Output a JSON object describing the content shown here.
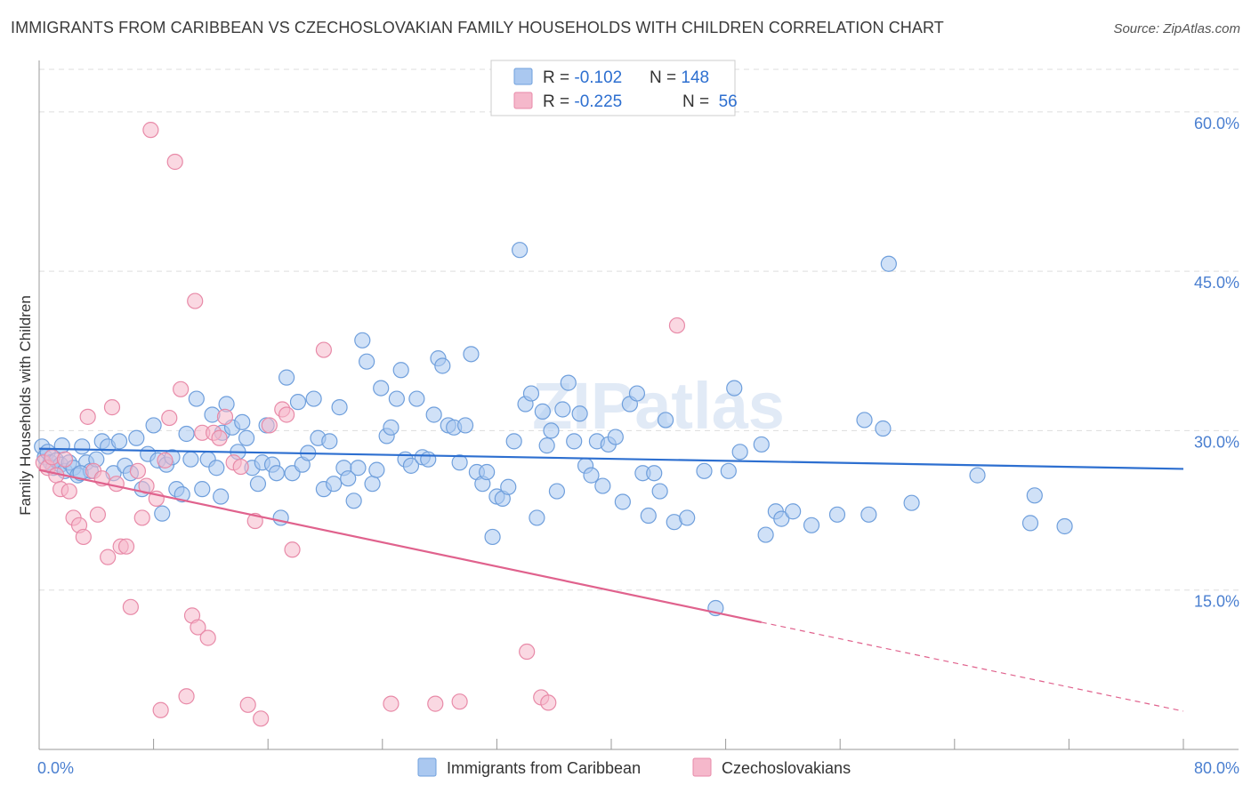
{
  "title": "IMMIGRANTS FROM CARIBBEAN VS CZECHOSLOVAKIAN FAMILY HOUSEHOLDS WITH CHILDREN CORRELATION CHART",
  "source": "Source: ZipAtlas.com",
  "watermark": "ZIPatlas",
  "colors": {
    "blue_fill": "#aac8f0",
    "blue_stroke": "#6f9fdc",
    "blue_line": "#2d6fd0",
    "pink_fill": "#f5b8cb",
    "pink_stroke": "#e88aa8",
    "pink_line": "#e0628d",
    "tick_text": "#4a7fd0",
    "grid": "#dddddd"
  },
  "legend": {
    "rows": [
      {
        "r_label": "R = ",
        "r_value": "-0.102",
        "n_label": "N = ",
        "n_value": "148"
      },
      {
        "r_label": "R = ",
        "r_value": "-0.225",
        "n_label": "N = ",
        "n_value": " 56"
      }
    ]
  },
  "bottom_legend": [
    "Immigrants from Caribbean",
    "Czechoslovakians"
  ],
  "chart_data": {
    "type": "scatter",
    "xlabel": "",
    "ylabel": "Family Households with Children",
    "xlim": [
      0,
      80
    ],
    "ylim": [
      0,
      64
    ],
    "x_tick_labels": [
      {
        "value": 0,
        "label": "0.0%"
      },
      {
        "value": 80,
        "label": "80.0%"
      }
    ],
    "y_tick_labels": [
      {
        "value": 15,
        "label": "15.0%"
      },
      {
        "value": 30,
        "label": "30.0%"
      },
      {
        "value": 45,
        "label": "45.0%"
      },
      {
        "value": 60,
        "label": "60.0%"
      }
    ],
    "x_minor_ticks": [
      0,
      8,
      16,
      24,
      32,
      40,
      48,
      56,
      64,
      72,
      80
    ],
    "grid": true,
    "series": [
      {
        "name": "Immigrants from Caribbean",
        "color": "#aac8f0",
        "trend": {
          "x": [
            0,
            80
          ],
          "y": [
            28.3,
            26.4
          ],
          "dashed_from": null
        },
        "points": [
          [
            0.2,
            28.5
          ],
          [
            0.4,
            27.5
          ],
          [
            0.6,
            28
          ],
          [
            0.8,
            27
          ],
          [
            1,
            26.5
          ],
          [
            1.2,
            27.2
          ],
          [
            1.5,
            26.8
          ],
          [
            1.8,
            26.2
          ],
          [
            2.1,
            27
          ],
          [
            2.4,
            26.5
          ],
          [
            2.7,
            25.8
          ],
          [
            3,
            28.5
          ],
          [
            3.3,
            27
          ],
          [
            3.6,
            26.2
          ],
          [
            4,
            27.3
          ],
          [
            4.4,
            29
          ],
          [
            4.8,
            28.5
          ],
          [
            5.2,
            26
          ],
          [
            5.6,
            29
          ],
          [
            6,
            26.7
          ],
          [
            6.4,
            26
          ],
          [
            6.8,
            29.3
          ],
          [
            7.2,
            24.5
          ],
          [
            7.6,
            27.8
          ],
          [
            8,
            30.5
          ],
          [
            8.3,
            27.2
          ],
          [
            8.6,
            22.2
          ],
          [
            8.9,
            26.8
          ],
          [
            9.3,
            27.5
          ],
          [
            9.6,
            24.5
          ],
          [
            10,
            24
          ],
          [
            10.3,
            29.7
          ],
          [
            10.6,
            27.3
          ],
          [
            11,
            33
          ],
          [
            11.4,
            24.5
          ],
          [
            11.8,
            27.3
          ],
          [
            12.1,
            31.5
          ],
          [
            12.4,
            26.5
          ],
          [
            12.8,
            29.8
          ],
          [
            13.1,
            32.5
          ],
          [
            13.5,
            30.3
          ],
          [
            13.9,
            28
          ],
          [
            14.2,
            30.8
          ],
          [
            14.5,
            29.3
          ],
          [
            14.9,
            26.5
          ],
          [
            15.3,
            25
          ],
          [
            15.6,
            27
          ],
          [
            15.9,
            30.5
          ],
          [
            16.3,
            26.8
          ],
          [
            16.6,
            26
          ],
          [
            16.9,
            21.8
          ],
          [
            17.3,
            35
          ],
          [
            17.7,
            26
          ],
          [
            18.1,
            32.7
          ],
          [
            18.4,
            26.8
          ],
          [
            18.8,
            27.9
          ],
          [
            19.2,
            33
          ],
          [
            19.5,
            29.3
          ],
          [
            19.9,
            24.5
          ],
          [
            20.3,
            29
          ],
          [
            20.6,
            25
          ],
          [
            21,
            32.2
          ],
          [
            21.3,
            26.5
          ],
          [
            21.6,
            25.5
          ],
          [
            22,
            23.4
          ],
          [
            22.3,
            26.5
          ],
          [
            22.6,
            38.5
          ],
          [
            22.9,
            36.5
          ],
          [
            23.3,
            25
          ],
          [
            23.6,
            26.3
          ],
          [
            23.9,
            34
          ],
          [
            24.3,
            29.5
          ],
          [
            24.6,
            30.3
          ],
          [
            25,
            33
          ],
          [
            25.3,
            35.7
          ],
          [
            25.6,
            27.3
          ],
          [
            26,
            26.7
          ],
          [
            26.4,
            33
          ],
          [
            26.8,
            27.5
          ],
          [
            27.2,
            27.3
          ],
          [
            27.6,
            31.5
          ],
          [
            27.9,
            36.8
          ],
          [
            28.2,
            36.1
          ],
          [
            28.6,
            30.5
          ],
          [
            29,
            30.3
          ],
          [
            29.4,
            27
          ],
          [
            29.8,
            30.5
          ],
          [
            30.2,
            37.2
          ],
          [
            30.6,
            26.1
          ],
          [
            31,
            25
          ],
          [
            31.3,
            26.1
          ],
          [
            31.7,
            20
          ],
          [
            32,
            23.8
          ],
          [
            32.4,
            23.6
          ],
          [
            32.8,
            24.7
          ],
          [
            33.2,
            29
          ],
          [
            33.6,
            47
          ],
          [
            34,
            32.5
          ],
          [
            34.4,
            33.5
          ],
          [
            34.8,
            21.8
          ],
          [
            35.2,
            31.8
          ],
          [
            35.5,
            28.6
          ],
          [
            35.8,
            30
          ],
          [
            36.2,
            24.3
          ],
          [
            36.6,
            32
          ],
          [
            37,
            34.5
          ],
          [
            37.4,
            29
          ],
          [
            37.8,
            31.6
          ],
          [
            38.2,
            26.7
          ],
          [
            38.6,
            25.8
          ],
          [
            39,
            29
          ],
          [
            39.4,
            24.8
          ],
          [
            39.8,
            28.7
          ],
          [
            40.3,
            29.4
          ],
          [
            40.8,
            23.3
          ],
          [
            41.3,
            32.5
          ],
          [
            41.8,
            33.5
          ],
          [
            42.2,
            26
          ],
          [
            42.6,
            22
          ],
          [
            43,
            26
          ],
          [
            43.4,
            24.3
          ],
          [
            43.8,
            31
          ],
          [
            44.4,
            21.4
          ],
          [
            45.3,
            21.8
          ],
          [
            46.5,
            26.2
          ],
          [
            47.3,
            13.3
          ],
          [
            48.2,
            26.2
          ],
          [
            48.6,
            34
          ],
          [
            49,
            28
          ],
          [
            50.5,
            28.7
          ],
          [
            50.8,
            20.2
          ],
          [
            51.5,
            22.4
          ],
          [
            51.9,
            21.7
          ],
          [
            52.7,
            22.4
          ],
          [
            54,
            21.1
          ],
          [
            55.8,
            22.1
          ],
          [
            57.7,
            31
          ],
          [
            58,
            22.1
          ],
          [
            59,
            30.2
          ],
          [
            59.4,
            45.7
          ],
          [
            61,
            23.2
          ],
          [
            65.6,
            25.8
          ],
          [
            69.3,
            21.3
          ],
          [
            69.6,
            23.9
          ],
          [
            71.7,
            21
          ],
          [
            1.6,
            28.6
          ],
          [
            2.9,
            26
          ],
          [
            12.7,
            23.8
          ]
        ]
      },
      {
        "name": "Czechoslovakians",
        "color": "#f5b8cb",
        "trend": {
          "x": [
            0,
            80
          ],
          "y": [
            26.3,
            3.6
          ],
          "dashed_from": 50.5
        },
        "points": [
          [
            0.3,
            27
          ],
          [
            0.6,
            26.5
          ],
          [
            0.9,
            27.5
          ],
          [
            1.2,
            25.8
          ],
          [
            1.5,
            24.5
          ],
          [
            1.8,
            27.3
          ],
          [
            2.1,
            24.3
          ],
          [
            2.4,
            21.8
          ],
          [
            2.8,
            21.1
          ],
          [
            3.1,
            20
          ],
          [
            3.4,
            31.3
          ],
          [
            3.8,
            26.2
          ],
          [
            4.1,
            22.1
          ],
          [
            4.4,
            25.5
          ],
          [
            4.8,
            18.1
          ],
          [
            5.1,
            32.2
          ],
          [
            5.4,
            25
          ],
          [
            5.7,
            19.1
          ],
          [
            6.1,
            19.1
          ],
          [
            6.4,
            13.4
          ],
          [
            6.9,
            26.2
          ],
          [
            7.2,
            21.8
          ],
          [
            7.5,
            24.8
          ],
          [
            7.8,
            58.3
          ],
          [
            8.2,
            23.6
          ],
          [
            8.5,
            3.7
          ],
          [
            8.8,
            27.2
          ],
          [
            9.1,
            31.2
          ],
          [
            9.5,
            55.3
          ],
          [
            9.9,
            33.9
          ],
          [
            10.3,
            5
          ],
          [
            10.7,
            12.6
          ],
          [
            11.1,
            11.5
          ],
          [
            11.4,
            29.8
          ],
          [
            11.8,
            10.5
          ],
          [
            12.2,
            29.8
          ],
          [
            12.6,
            29.3
          ],
          [
            13,
            31.3
          ],
          [
            13.6,
            27
          ],
          [
            14.1,
            26.6
          ],
          [
            14.6,
            4.2
          ],
          [
            15.1,
            21.5
          ],
          [
            15.5,
            2.9
          ],
          [
            16.1,
            30.5
          ],
          [
            17,
            32
          ],
          [
            17.3,
            31.5
          ],
          [
            17.7,
            18.8
          ],
          [
            19.9,
            37.6
          ],
          [
            24.6,
            4.3
          ],
          [
            27.7,
            4.3
          ],
          [
            29.4,
            4.5
          ],
          [
            34.1,
            9.2
          ],
          [
            35.1,
            4.9
          ],
          [
            35.6,
            4.4
          ],
          [
            44.6,
            39.9
          ],
          [
            10.9,
            42.2
          ]
        ]
      }
    ]
  }
}
